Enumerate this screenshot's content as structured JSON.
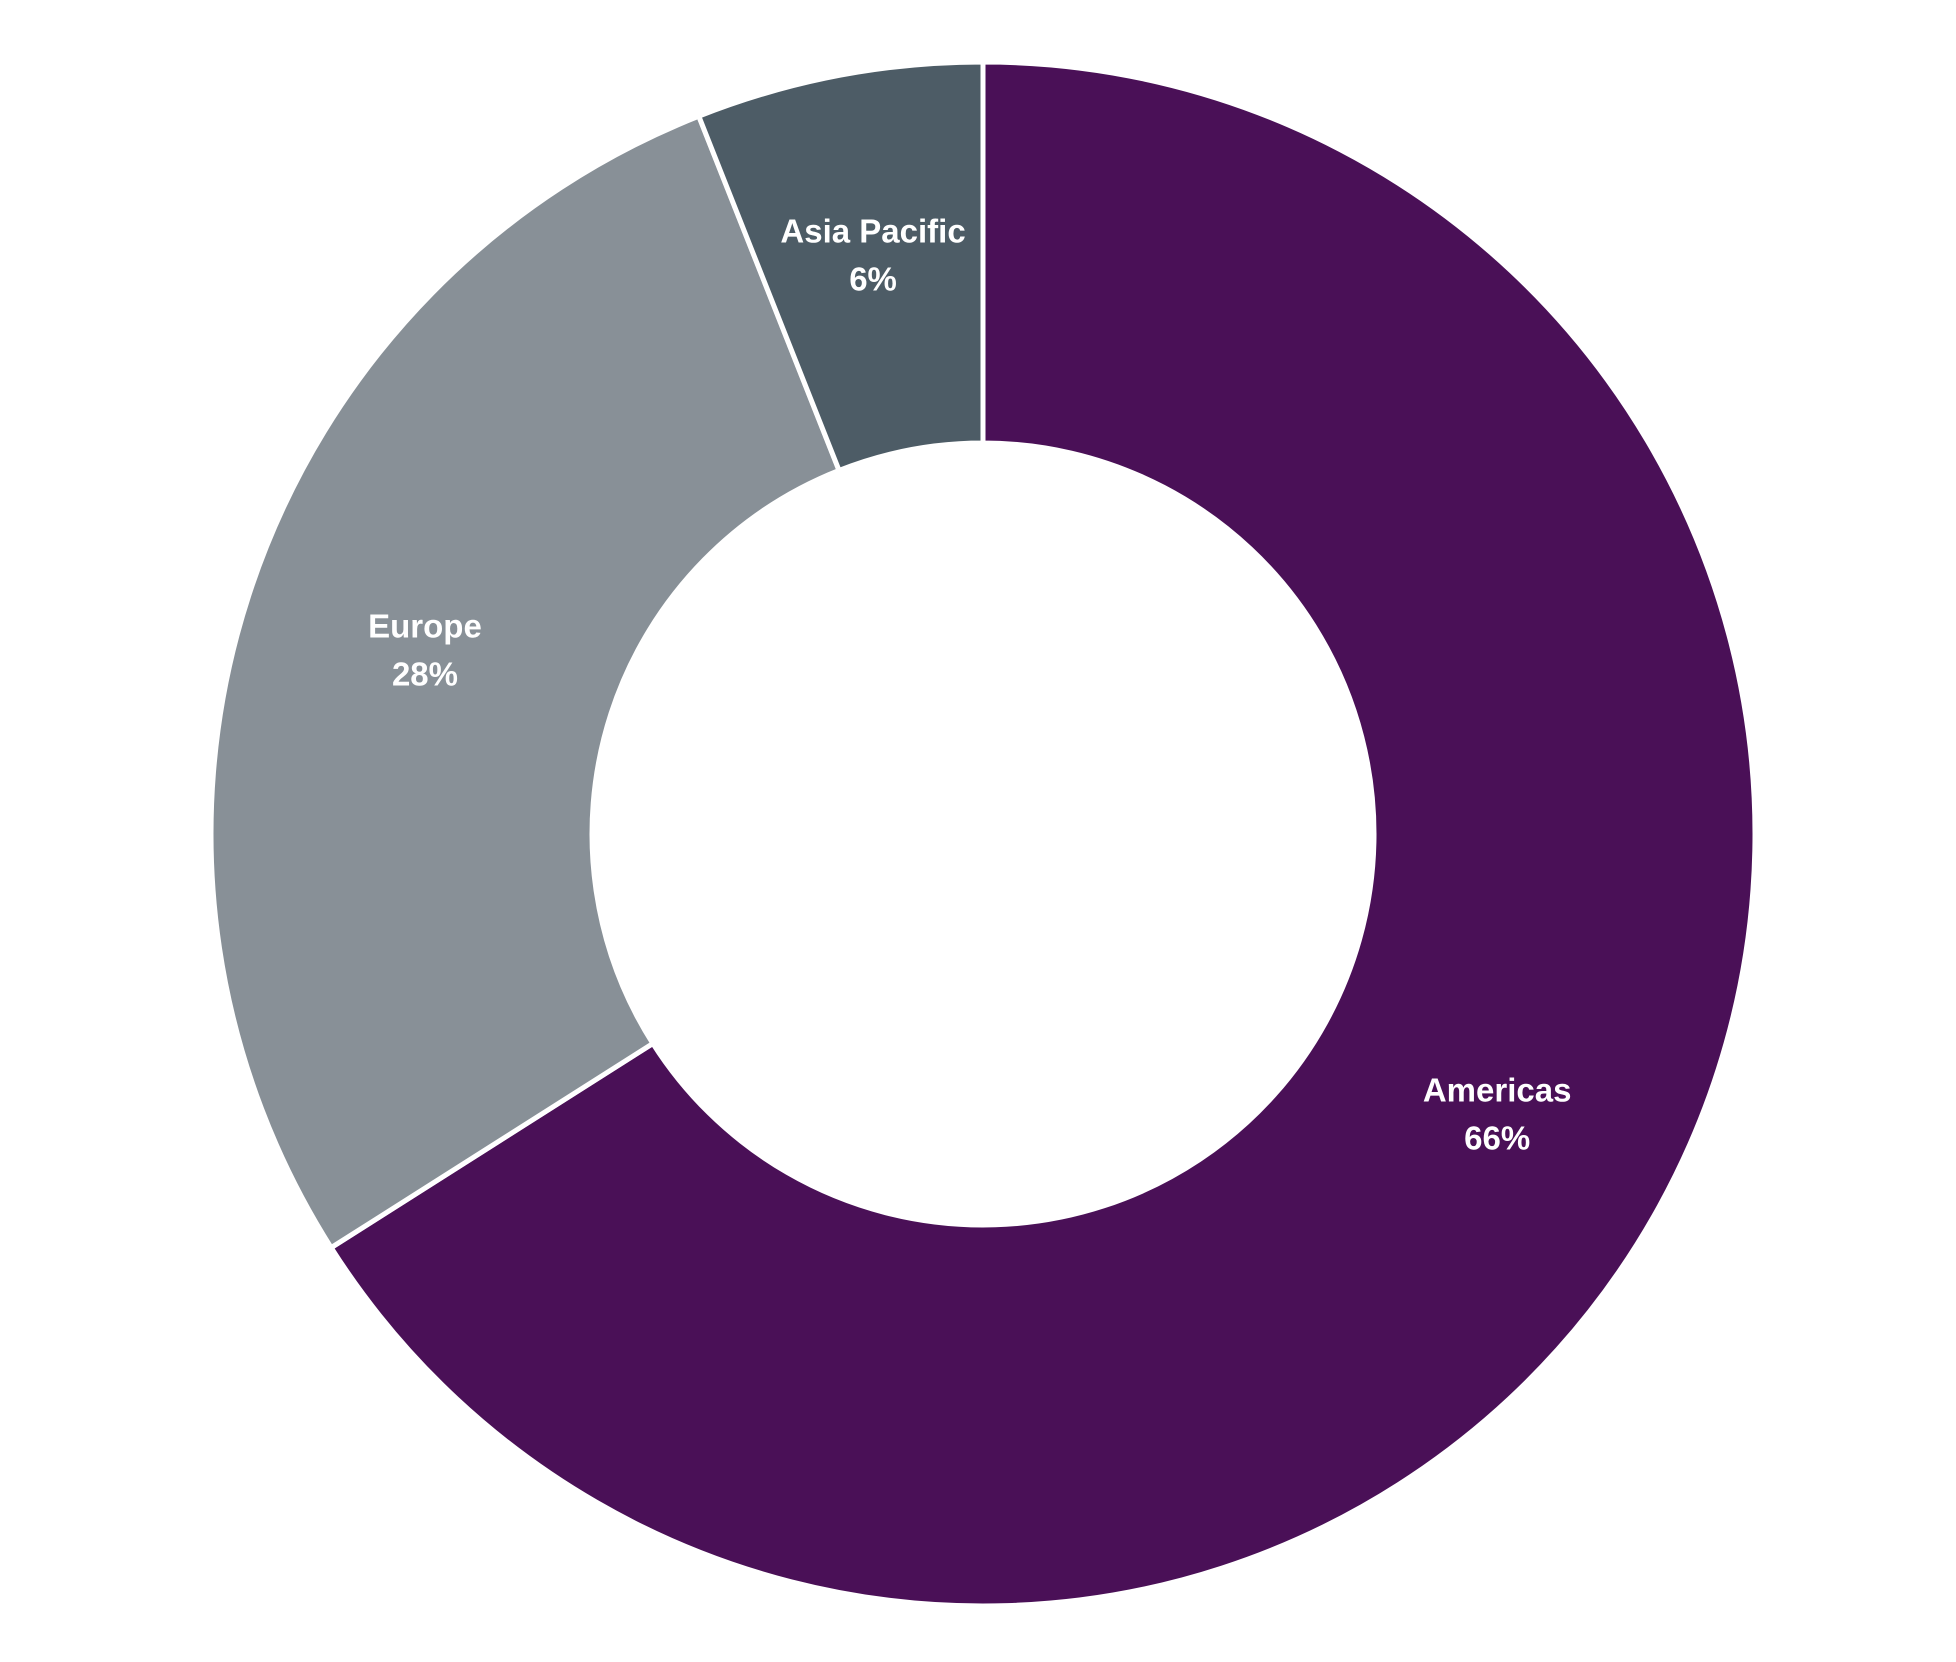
{
  "chart_data": {
    "type": "donut",
    "categories": [
      "Americas",
      "Europe",
      "Asia Pacific"
    ],
    "values": [
      66,
      28,
      6
    ],
    "value_labels": [
      "66%",
      "28%",
      "6%"
    ],
    "colors": [
      "#4a1057",
      "#889097",
      "#4d5c66"
    ]
  }
}
